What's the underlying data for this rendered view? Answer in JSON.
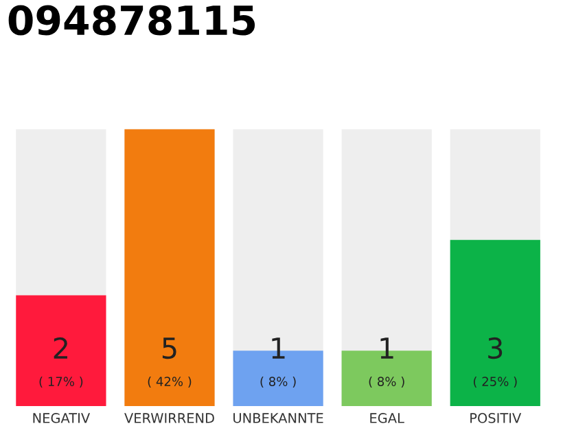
{
  "chart_data": {
    "type": "bar",
    "title": "094878115",
    "categories": [
      "NEGATIV",
      "VERWIRREND",
      "UNBEKANNTE",
      "EGAL",
      "POSITIV"
    ],
    "ylim": [
      0,
      5
    ],
    "tick_labels": "x",
    "grid": false,
    "data_labels": true,
    "colors": [
      "#ff1a3c",
      "#f27c0f",
      "#6ea2f0",
      "#7dc95e",
      "#0cb348"
    ],
    "values": [
      2,
      5,
      1,
      1,
      3
    ],
    "annotations": [
      "( 17% )",
      "( 42% )",
      "( 8% )",
      "( 8% )",
      "( 25% )"
    ]
  }
}
